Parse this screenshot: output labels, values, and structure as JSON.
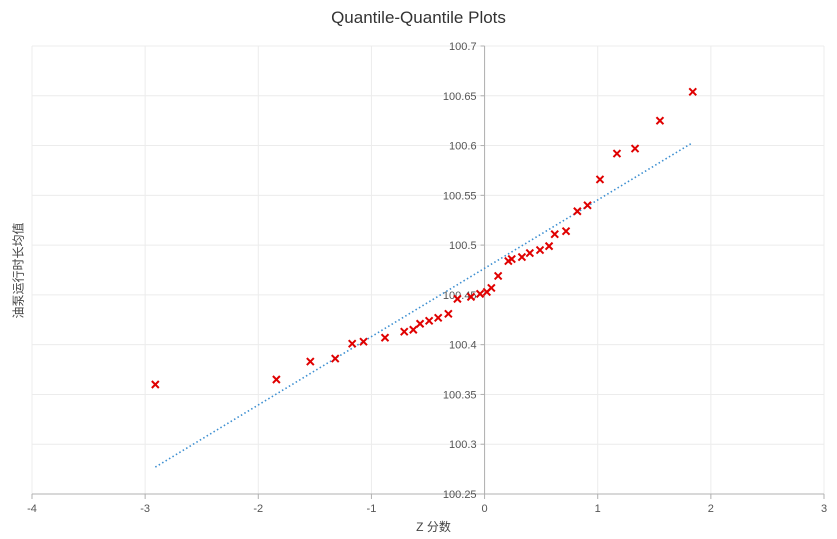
{
  "chart_data": {
    "type": "scatter",
    "title": "Quantile-Quantile Plots",
    "xlabel": "Z 分数",
    "ylabel": "油泵运行时长均值",
    "xlim": [
      -4,
      3
    ],
    "ylim": [
      100.25,
      100.7
    ],
    "x_ticks": [
      "-4",
      "-3",
      "-2",
      "-1",
      "0",
      "1",
      "2",
      "3"
    ],
    "y_ticks": [
      "100.25",
      "100.3",
      "100.35",
      "100.4",
      "100.45",
      "100.5",
      "100.55",
      "100.6",
      "100.65",
      "100.7"
    ],
    "grid": true,
    "marker_color": "#e00000",
    "line_color": "#3d8fd1",
    "series": [
      {
        "points": [
          [
            -2.91,
            100.36
          ],
          [
            -1.84,
            100.365
          ],
          [
            -1.54,
            100.383
          ],
          [
            -1.32,
            100.386
          ],
          [
            -1.17,
            100.401
          ],
          [
            -1.07,
            100.403
          ],
          [
            -0.88,
            100.407
          ],
          [
            -0.71,
            100.413
          ],
          [
            -0.63,
            100.415
          ],
          [
            -0.57,
            100.421
          ],
          [
            -0.49,
            100.424
          ],
          [
            -0.41,
            100.427
          ],
          [
            -0.32,
            100.431
          ],
          [
            -0.24,
            100.446
          ],
          [
            -0.12,
            100.448
          ],
          [
            -0.04,
            100.451
          ],
          [
            0.02,
            100.453
          ],
          [
            0.06,
            100.457
          ],
          [
            0.12,
            100.469
          ],
          [
            0.21,
            100.484
          ],
          [
            0.24,
            100.486
          ],
          [
            0.33,
            100.488
          ],
          [
            0.4,
            100.492
          ],
          [
            0.49,
            100.495
          ],
          [
            0.57,
            100.499
          ],
          [
            0.62,
            100.511
          ],
          [
            0.72,
            100.514
          ],
          [
            0.82,
            100.534
          ],
          [
            0.91,
            100.54
          ],
          [
            1.02,
            100.566
          ],
          [
            1.17,
            100.592
          ],
          [
            1.33,
            100.597
          ],
          [
            1.55,
            100.625
          ],
          [
            1.84,
            100.654
          ]
        ]
      }
    ],
    "reference_line": {
      "from": [
        -2.91,
        100.277
      ],
      "to": [
        1.84,
        100.603
      ],
      "style": "dotted"
    }
  }
}
